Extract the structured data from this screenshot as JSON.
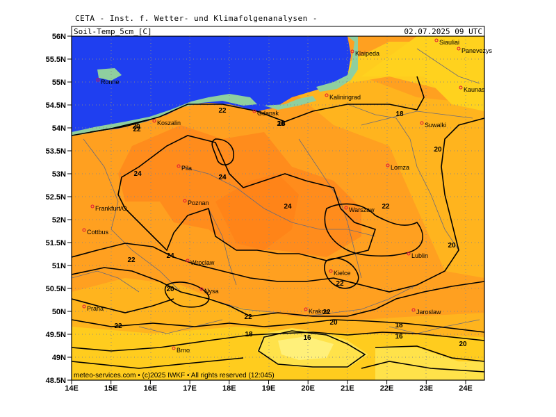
{
  "header": {
    "title": "CETA - Inst. f. Wetter- und Klimafolgenanalysen -",
    "param": "Soil-Temp_5cm_[C]",
    "datetime": "02.07.2025 09 UTC"
  },
  "footer": "meteo-services.com • (c)2025 IWKF • All rights reserved (12:045)",
  "axes": {
    "lat_labels": [
      "56N",
      "55.5N",
      "55N",
      "54.5N",
      "54N",
      "53.5N",
      "53N",
      "52.5N",
      "52N",
      "51.5N",
      "51N",
      "50.5N",
      "50N",
      "49.5N",
      "49N",
      "48.5N"
    ],
    "lon_labels": [
      "14E",
      "15E",
      "16E",
      "17E",
      "18E",
      "19E",
      "20E",
      "21E",
      "22E",
      "23E",
      "24E"
    ]
  },
  "cities": [
    {
      "name": "Siauliai"
    },
    {
      "name": "Panevezys"
    },
    {
      "name": "Klaipeda"
    },
    {
      "name": "Kaunas"
    },
    {
      "name": "Ronne"
    },
    {
      "name": "Kaliningrad"
    },
    {
      "name": "Gdansk"
    },
    {
      "name": "Koszalin"
    },
    {
      "name": "Suwalki"
    },
    {
      "name": "Pila"
    },
    {
      "name": "Lomza"
    },
    {
      "name": "Poznan"
    },
    {
      "name": "Frankfurt/O."
    },
    {
      "name": "Warszaw"
    },
    {
      "name": "Cottbus"
    },
    {
      "name": "Lublin"
    },
    {
      "name": "Wroclaw"
    },
    {
      "name": "Kielce"
    },
    {
      "name": "Nysa"
    },
    {
      "name": "Praha"
    },
    {
      "name": "Krakow"
    },
    {
      "name": "Jaroslaw"
    },
    {
      "name": "Brno"
    }
  ],
  "contour_labels": [
    "22",
    "20",
    "22",
    "18",
    "18",
    "20",
    "24",
    "24",
    "24",
    "22",
    "20",
    "24",
    "22",
    "22",
    "20",
    "22",
    "22",
    "20",
    "18",
    "18",
    "16",
    "16",
    "20",
    "18",
    "22",
    "20",
    "24"
  ],
  "colors": {
    "sea": "#1f3ff0",
    "land_coast": "#8fcf9f",
    "t24plus": "#ff8a1a",
    "t22": "#ffa020",
    "t20": "#ffb41e",
    "t18": "#ffcc1e",
    "t16": "#ffe24a",
    "t14": "#fff07a"
  }
}
